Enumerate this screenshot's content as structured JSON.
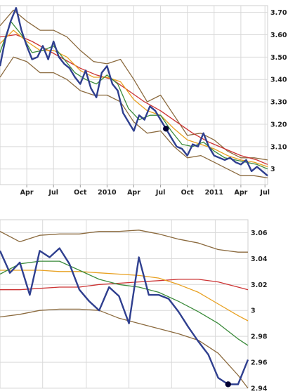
{
  "chart_data": [
    {
      "type": "line",
      "title": "",
      "ylim": [
        2.93,
        3.73
      ],
      "x_range": [
        0,
        100
      ],
      "y_ticks": [
        "3.70",
        "3.60",
        "3.50",
        "3.40",
        "3.30",
        "3.20",
        "3.10",
        "3"
      ],
      "y_tick_values": [
        3.7,
        3.6,
        3.5,
        3.4,
        3.3,
        3.2,
        3.1,
        3.0
      ],
      "x_tick_labels": [
        "Apr",
        "Jul",
        "Oct",
        "2010",
        "Apr",
        "Jul",
        "Oct",
        "2011",
        "Apr",
        "Jul"
      ],
      "x_tick_positions": [
        10,
        20,
        30,
        40,
        50,
        60,
        70,
        80,
        90,
        99
      ],
      "grid": true,
      "marker": {
        "x": 62,
        "y": 3.18,
        "color": "#000033"
      },
      "series": [
        {
          "color": "#2f3f8f",
          "x": [
            0,
            2,
            4,
            6,
            8,
            10,
            12,
            14,
            16,
            18,
            20,
            22,
            24,
            26,
            28,
            30,
            32,
            34,
            36,
            38,
            40,
            42,
            44,
            46,
            48,
            50,
            52,
            54,
            56,
            58,
            60,
            62,
            64,
            66,
            68,
            70,
            72,
            74,
            76,
            78,
            80,
            82,
            84,
            86,
            88,
            90,
            92,
            94,
            96,
            98,
            100
          ],
          "y": [
            3.46,
            3.58,
            3.66,
            3.72,
            3.62,
            3.55,
            3.49,
            3.5,
            3.55,
            3.49,
            3.57,
            3.5,
            3.47,
            3.45,
            3.41,
            3.38,
            3.44,
            3.36,
            3.32,
            3.43,
            3.46,
            3.38,
            3.35,
            3.25,
            3.21,
            3.17,
            3.24,
            3.22,
            3.28,
            3.26,
            3.22,
            3.18,
            3.14,
            3.1,
            3.09,
            3.06,
            3.11,
            3.1,
            3.16,
            3.1,
            3.06,
            3.05,
            3.04,
            3.05,
            3.03,
            3.02,
            3.04,
            2.99,
            3.01,
            2.99,
            2.97
          ]
        },
        {
          "color": "#3a8a3a",
          "x": [
            0,
            4,
            8,
            12,
            16,
            20,
            24,
            28,
            32,
            36,
            40,
            44,
            48,
            52,
            56,
            60,
            64,
            68,
            72,
            76,
            80,
            84,
            88,
            92,
            96,
            100
          ],
          "y": [
            3.52,
            3.66,
            3.6,
            3.52,
            3.53,
            3.55,
            3.49,
            3.43,
            3.4,
            3.38,
            3.42,
            3.38,
            3.27,
            3.22,
            3.24,
            3.24,
            3.17,
            3.11,
            3.1,
            3.12,
            3.08,
            3.05,
            3.04,
            3.03,
            3.02,
            3.0
          ]
        },
        {
          "color": "#e8a020",
          "x": [
            0,
            5,
            10,
            15,
            20,
            25,
            30,
            35,
            40,
            45,
            50,
            55,
            60,
            65,
            70,
            75,
            80,
            85,
            90,
            95,
            100
          ],
          "y": [
            3.56,
            3.62,
            3.57,
            3.53,
            3.53,
            3.5,
            3.44,
            3.41,
            3.41,
            3.39,
            3.31,
            3.26,
            3.24,
            3.18,
            3.13,
            3.11,
            3.09,
            3.06,
            3.04,
            3.03,
            3.01
          ]
        },
        {
          "color": "#cc3333",
          "x": [
            0,
            6,
            12,
            18,
            24,
            30,
            36,
            42,
            48,
            54,
            60,
            66,
            72,
            78,
            84,
            90,
            96,
            100
          ],
          "y": [
            3.59,
            3.6,
            3.57,
            3.53,
            3.49,
            3.45,
            3.42,
            3.4,
            3.35,
            3.3,
            3.26,
            3.21,
            3.16,
            3.12,
            3.09,
            3.06,
            3.04,
            3.02
          ]
        },
        {
          "color": "#8b6a3e",
          "x": [
            0,
            5,
            10,
            15,
            20,
            25,
            30,
            35,
            40,
            45,
            50,
            55,
            60,
            65,
            70,
            75,
            80,
            85,
            90,
            95,
            100
          ],
          "y": [
            3.64,
            3.71,
            3.66,
            3.62,
            3.62,
            3.59,
            3.53,
            3.48,
            3.47,
            3.49,
            3.4,
            3.3,
            3.33,
            3.24,
            3.15,
            3.16,
            3.13,
            3.08,
            3.05,
            3.05,
            3.04
          ]
        },
        {
          "color": "#8b6a3e",
          "x": [
            0,
            5,
            10,
            15,
            20,
            25,
            30,
            35,
            40,
            45,
            50,
            55,
            60,
            65,
            70,
            75,
            80,
            85,
            90,
            95,
            100
          ],
          "y": [
            3.41,
            3.5,
            3.48,
            3.43,
            3.43,
            3.4,
            3.35,
            3.33,
            3.33,
            3.3,
            3.21,
            3.16,
            3.17,
            3.1,
            3.05,
            3.06,
            3.03,
            3.0,
            2.97,
            2.97,
            2.96
          ]
        }
      ]
    },
    {
      "type": "line",
      "title": "",
      "ylim": [
        2.94,
        3.07
      ],
      "x_range": [
        0,
        25
      ],
      "y_ticks": [
        "3.06",
        "3.04",
        "3.02",
        "3",
        "2.98",
        "2.96",
        "2.94"
      ],
      "y_tick_values": [
        3.06,
        3.04,
        3.02,
        3.0,
        2.98,
        2.96,
        2.94
      ],
      "grid": true,
      "marker": {
        "x": 23,
        "y": 2.943,
        "color": "#000033"
      },
      "series": [
        {
          "color": "#2f3f8f",
          "x": [
            0,
            1,
            2,
            3,
            4,
            5,
            6,
            7,
            8,
            9,
            10,
            11,
            12,
            13,
            14,
            15,
            16,
            17,
            18,
            19,
            20,
            21,
            22,
            23,
            24,
            25
          ],
          "y": [
            3.046,
            3.029,
            3.037,
            3.012,
            3.046,
            3.041,
            3.048,
            3.036,
            3.016,
            3.007,
            3.0,
            3.018,
            3.011,
            2.99,
            3.041,
            3.012,
            3.012,
            3.009,
            2.999,
            2.987,
            2.976,
            2.966,
            2.948,
            2.943,
            2.943,
            2.962
          ]
        },
        {
          "color": "#3a8a3a",
          "x": [
            0,
            2,
            4,
            6,
            8,
            10,
            12,
            14,
            16,
            18,
            20,
            22,
            24,
            25
          ],
          "y": [
            3.028,
            3.036,
            3.038,
            3.038,
            3.031,
            3.024,
            3.02,
            3.018,
            3.014,
            3.007,
            2.999,
            2.99,
            2.978,
            2.973
          ]
        },
        {
          "color": "#e8a020",
          "x": [
            0,
            2,
            4,
            6,
            8,
            10,
            12,
            14,
            16,
            18,
            20,
            22,
            24,
            25
          ],
          "y": [
            3.031,
            3.031,
            3.031,
            3.03,
            3.03,
            3.029,
            3.028,
            3.027,
            3.025,
            3.02,
            3.014,
            3.005,
            2.996,
            2.992
          ]
        },
        {
          "color": "#cc3333",
          "x": [
            0,
            2,
            4,
            6,
            8,
            10,
            12,
            14,
            16,
            18,
            20,
            22,
            24,
            25
          ],
          "y": [
            3.016,
            3.016,
            3.017,
            3.018,
            3.018,
            3.02,
            3.021,
            3.022,
            3.023,
            3.024,
            3.024,
            3.022,
            3.018,
            3.016
          ]
        },
        {
          "color": "#8b6a3e",
          "x": [
            0,
            2,
            4,
            6,
            8,
            10,
            12,
            14,
            16,
            18,
            20,
            22,
            24,
            25
          ],
          "y": [
            3.061,
            3.053,
            3.058,
            3.059,
            3.059,
            3.061,
            3.061,
            3.062,
            3.059,
            3.055,
            3.052,
            3.047,
            3.045,
            3.045
          ]
        },
        {
          "color": "#8b6a3e",
          "x": [
            0,
            2,
            4,
            6,
            8,
            10,
            12,
            14,
            16,
            18,
            20,
            22,
            24,
            25
          ],
          "y": [
            2.995,
            2.997,
            3.0,
            3.001,
            3.001,
            3.0,
            2.994,
            2.99,
            2.986,
            2.982,
            2.977,
            2.967,
            2.95,
            2.94
          ]
        }
      ]
    }
  ]
}
